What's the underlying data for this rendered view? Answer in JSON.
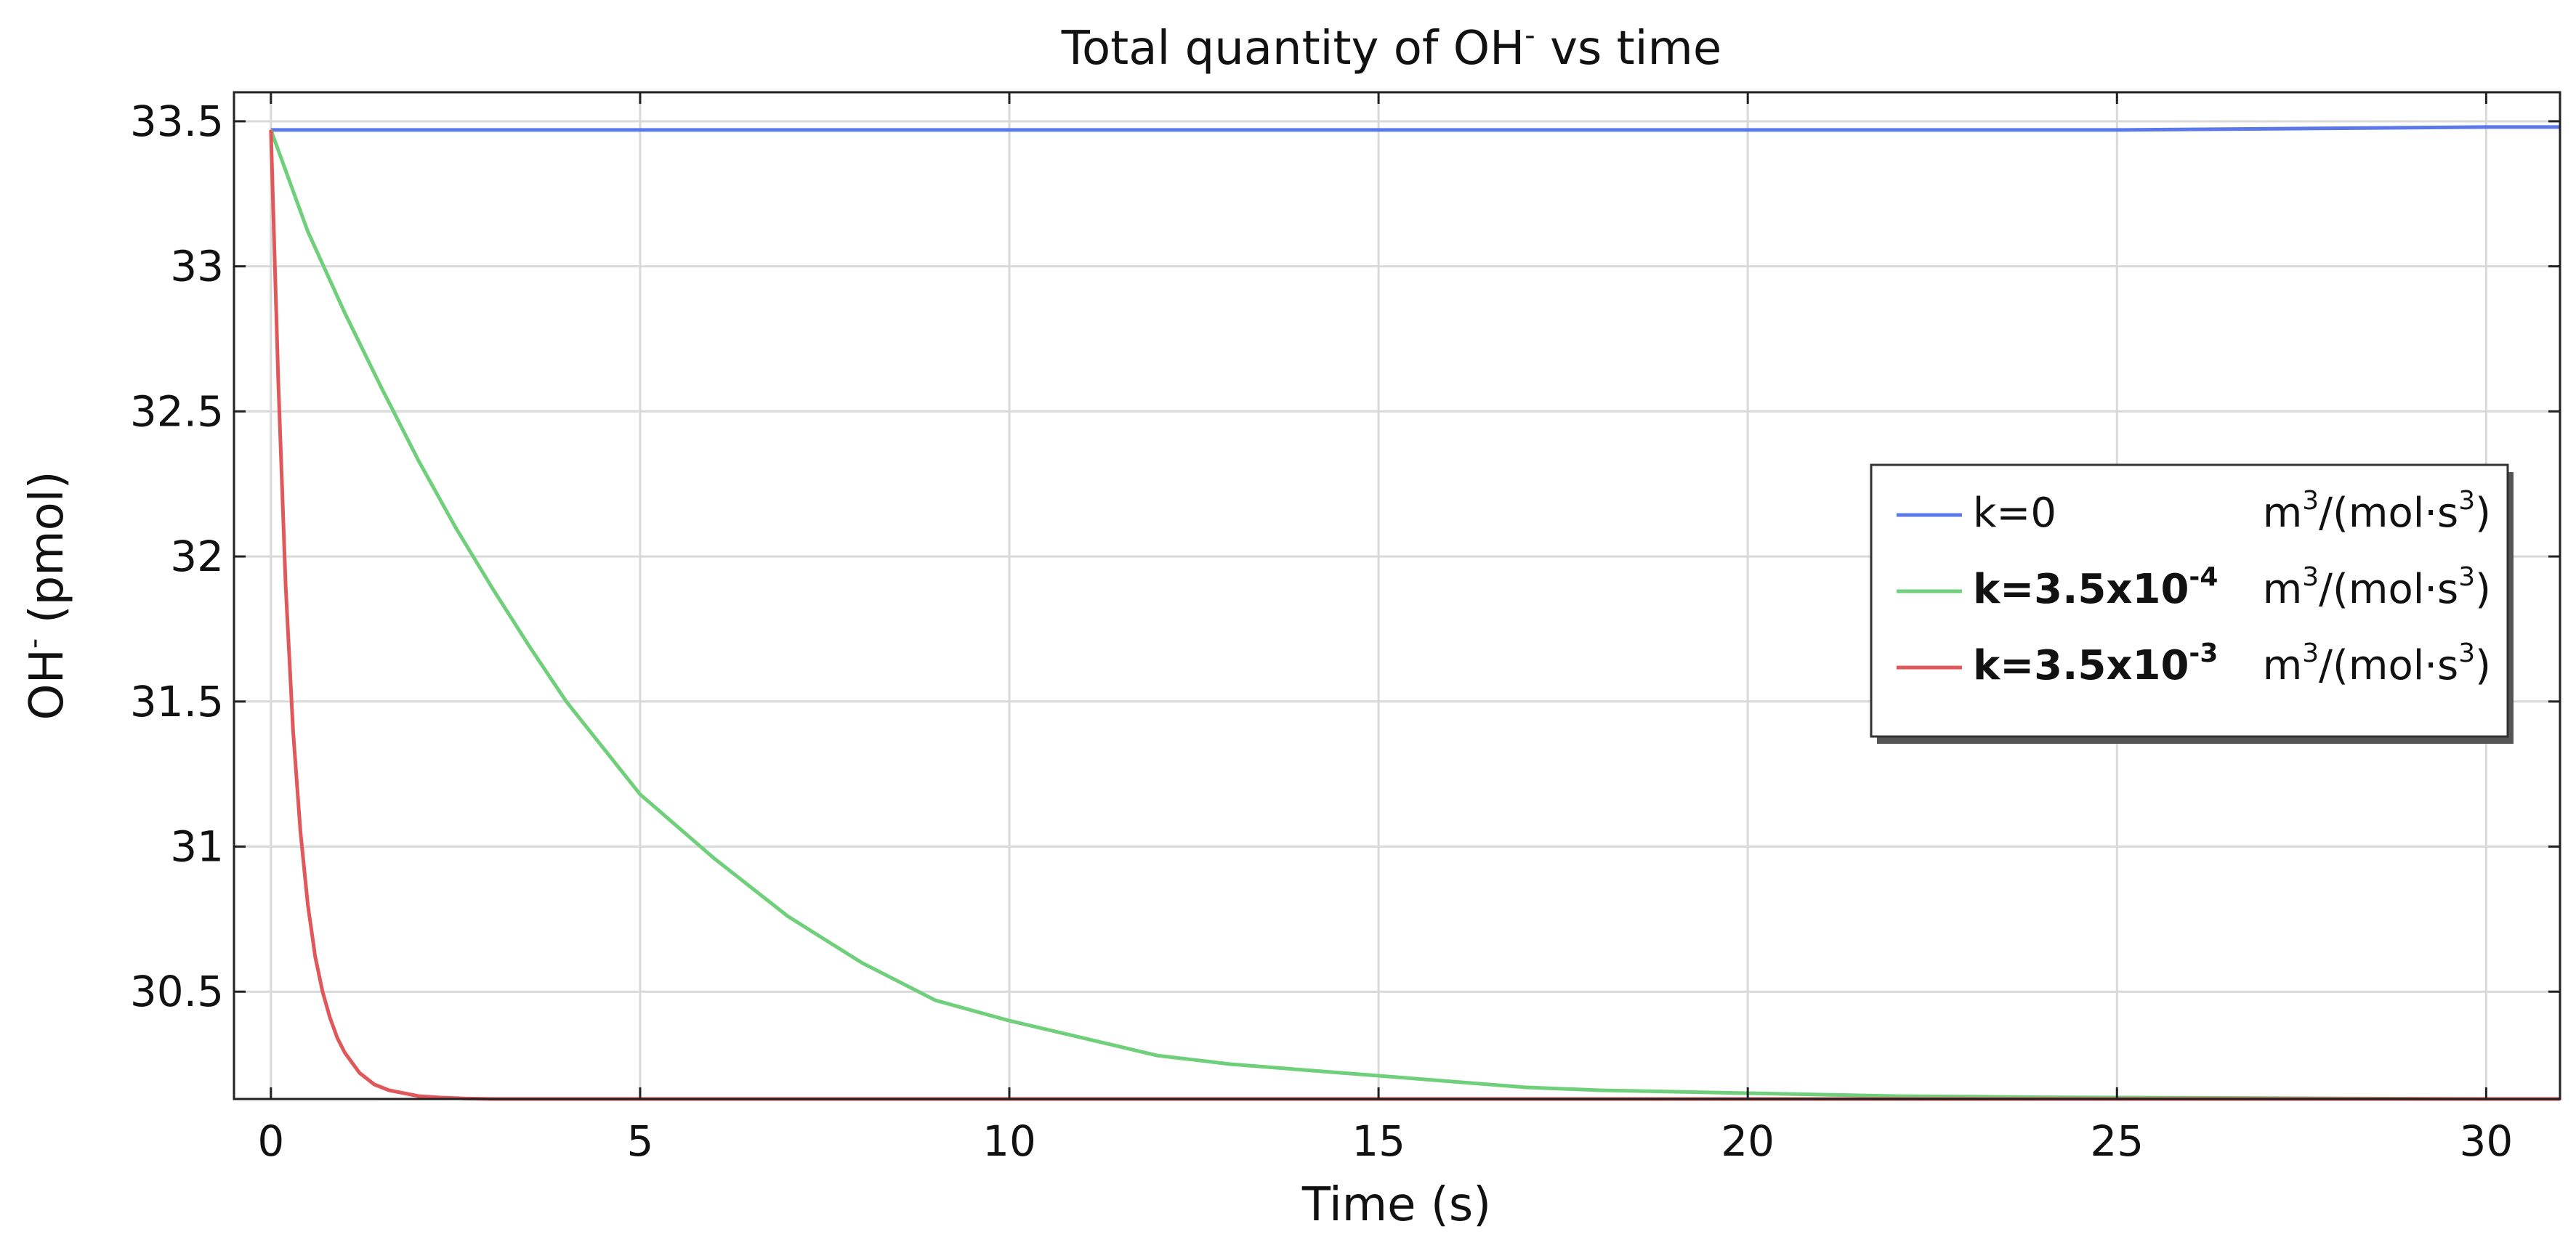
{
  "chart_data": {
    "type": "line",
    "title": "Total quantity of OH",
    "title_sup": "-",
    "title_tail": " vs time",
    "xlabel": "Time (s)",
    "ylabel": "OH",
    "ylabel_sup": "-",
    "ylabel_tail": " (pmol)",
    "xlim": [
      -0.5,
      31
    ],
    "ylim": [
      30.13,
      33.6
    ],
    "xticks": [
      0,
      5,
      10,
      15,
      20,
      25,
      30
    ],
    "xtick_labels": [
      "0",
      "5",
      "10",
      "15",
      "20",
      "25",
      "30"
    ],
    "yticks": [
      30.5,
      31,
      31.5,
      32,
      32.5,
      33,
      33.5
    ],
    "ytick_labels": [
      "30.5",
      "31",
      "31.5",
      "32",
      "32.5",
      "33",
      "33.5"
    ],
    "grid": true,
    "legend_position": "right",
    "series": [
      {
        "name": "k=0",
        "unit": "m3/(mol·s3)",
        "color": "#5b78e8",
        "x": [
          0,
          5,
          10,
          15,
          20,
          25,
          30,
          31
        ],
        "y": [
          33.47,
          33.47,
          33.47,
          33.47,
          33.47,
          33.47,
          33.48,
          33.48
        ]
      },
      {
        "name": "k=3.5x10-4",
        "unit": "m3/(mol·s3)",
        "color": "#6fcf7a",
        "x": [
          0,
          0.5,
          1,
          1.5,
          2,
          2.5,
          3,
          3.5,
          4,
          5,
          6,
          7,
          8,
          9,
          10,
          11,
          12,
          13,
          14,
          15,
          16,
          17,
          18,
          19,
          20,
          21,
          22,
          23,
          24,
          25,
          26,
          27,
          28,
          29,
          30,
          31
        ],
        "y": [
          33.47,
          33.12,
          32.84,
          32.58,
          32.33,
          32.1,
          31.89,
          31.69,
          31.5,
          31.18,
          30.96,
          30.76,
          30.6,
          30.47,
          30.4,
          30.34,
          30.28,
          30.25,
          30.23,
          30.21,
          30.19,
          30.17,
          30.16,
          30.155,
          30.15,
          30.145,
          30.14,
          30.138,
          30.136,
          30.135,
          30.134,
          30.133,
          30.132,
          30.131,
          30.13,
          30.13
        ]
      },
      {
        "name": "k=3.5x10-3",
        "unit": "m3/(mol·s3)",
        "color": "#e0585a",
        "x": [
          0,
          0.1,
          0.2,
          0.3,
          0.4,
          0.5,
          0.6,
          0.7,
          0.8,
          0.9,
          1,
          1.2,
          1.4,
          1.6,
          1.8,
          2,
          2.3,
          2.6,
          3,
          5,
          10,
          15,
          20,
          25,
          30,
          31
        ],
        "y": [
          33.47,
          32.6,
          31.9,
          31.4,
          31.05,
          30.8,
          30.62,
          30.5,
          30.41,
          30.34,
          30.29,
          30.22,
          30.18,
          30.16,
          30.15,
          30.14,
          30.135,
          30.132,
          30.13,
          30.13,
          30.13,
          30.13,
          30.13,
          30.13,
          30.13,
          30.13
        ]
      }
    ],
    "legend": [
      {
        "k_text": "k=0",
        "k_exp": "",
        "unit_pre": "m",
        "unit_sup1": "3",
        "unit_mid": "/(mol·s",
        "unit_sup2": "3",
        "unit_post": ")"
      },
      {
        "k_text": "k=3.5x10",
        "k_exp": "-4",
        "unit_pre": "m",
        "unit_sup1": "3",
        "unit_mid": "/(mol·s",
        "unit_sup2": "3",
        "unit_post": ")"
      },
      {
        "k_text": "k=3.5x10",
        "k_exp": "-3",
        "unit_pre": "m",
        "unit_sup1": "3",
        "unit_mid": "/(mol·s",
        "unit_sup2": "3",
        "unit_post": ")"
      }
    ]
  }
}
